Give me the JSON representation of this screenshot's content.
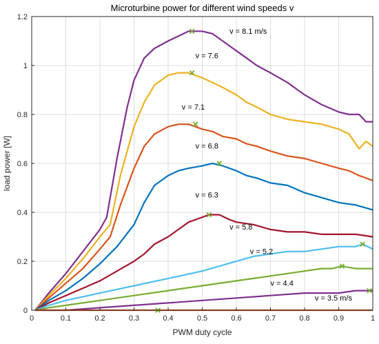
{
  "chart_data": {
    "type": "line",
    "title": "Microturbine power for different wind speeds v",
    "xlabel": "PWM duty cycle",
    "ylabel": "load power [W]",
    "xlim": [
      0,
      1
    ],
    "ylim": [
      0,
      1.2
    ],
    "xticks": [
      "0",
      "0.1",
      "0.2",
      "0.3",
      "0.4",
      "0.5",
      "0.6",
      "0.7",
      "0.8",
      "0.9",
      "1"
    ],
    "yticks": [
      "0",
      "0.2",
      "0.4",
      "0.6",
      "0.8",
      "1",
      "1.2"
    ],
    "grid": true,
    "series": [
      {
        "name": "v = 8.1 m/s",
        "color": "#7e2f8e",
        "x": [
          0.01,
          0.05,
          0.1,
          0.15,
          0.2,
          0.22,
          0.25,
          0.28,
          0.3,
          0.33,
          0.36,
          0.4,
          0.43,
          0.46,
          0.5,
          0.53,
          0.56,
          0.6,
          0.63,
          0.66,
          0.7,
          0.75,
          0.8,
          0.85,
          0.9,
          0.93,
          0.96,
          0.98,
          1.0
        ],
        "y": [
          0.0,
          0.07,
          0.15,
          0.24,
          0.33,
          0.38,
          0.62,
          0.83,
          0.94,
          1.03,
          1.07,
          1.1,
          1.12,
          1.14,
          1.14,
          1.13,
          1.1,
          1.06,
          1.03,
          1.0,
          0.97,
          0.93,
          0.88,
          0.84,
          0.81,
          0.8,
          0.8,
          0.77,
          0.77
        ],
        "label_text": "v = 8.1 m/s",
        "label_pos": [
          0.58,
          1.13
        ],
        "opt": [
          0.47,
          1.14
        ]
      },
      {
        "name": "v = 7.6",
        "color": "#edb120",
        "x": [
          0.01,
          0.05,
          0.1,
          0.15,
          0.2,
          0.23,
          0.26,
          0.3,
          0.33,
          0.36,
          0.4,
          0.43,
          0.46,
          0.5,
          0.53,
          0.56,
          0.6,
          0.63,
          0.66,
          0.7,
          0.75,
          0.8,
          0.85,
          0.9,
          0.93,
          0.96,
          0.98,
          1.0
        ],
        "y": [
          0.0,
          0.06,
          0.13,
          0.21,
          0.3,
          0.35,
          0.55,
          0.75,
          0.85,
          0.92,
          0.96,
          0.97,
          0.97,
          0.95,
          0.93,
          0.91,
          0.88,
          0.85,
          0.83,
          0.8,
          0.78,
          0.77,
          0.76,
          0.74,
          0.72,
          0.66,
          0.69,
          0.67
        ],
        "label_text": "v = 7.6",
        "label_pos": [
          0.48,
          1.03
        ],
        "opt": [
          0.47,
          0.97
        ]
      },
      {
        "name": "v = 7.1",
        "color": "#d95319",
        "x": [
          0.01,
          0.05,
          0.1,
          0.15,
          0.2,
          0.23,
          0.26,
          0.3,
          0.33,
          0.36,
          0.4,
          0.43,
          0.46,
          0.5,
          0.53,
          0.56,
          0.6,
          0.63,
          0.66,
          0.7,
          0.75,
          0.8,
          0.85,
          0.9,
          0.93,
          0.96,
          1.0
        ],
        "y": [
          0.0,
          0.05,
          0.11,
          0.17,
          0.25,
          0.3,
          0.43,
          0.58,
          0.67,
          0.72,
          0.75,
          0.76,
          0.76,
          0.74,
          0.73,
          0.71,
          0.7,
          0.68,
          0.67,
          0.65,
          0.63,
          0.62,
          0.6,
          0.58,
          0.57,
          0.55,
          0.53
        ],
        "label_text": "v = 7.1",
        "label_pos": [
          0.44,
          0.82
        ],
        "opt": [
          0.48,
          0.76
        ]
      },
      {
        "name": "v = 6.8",
        "color": "#0072bd",
        "x": [
          0.01,
          0.05,
          0.1,
          0.15,
          0.2,
          0.25,
          0.3,
          0.33,
          0.36,
          0.4,
          0.43,
          0.46,
          0.5,
          0.53,
          0.56,
          0.6,
          0.63,
          0.66,
          0.7,
          0.75,
          0.8,
          0.85,
          0.9,
          0.95,
          1.0
        ],
        "y": [
          0.0,
          0.04,
          0.08,
          0.13,
          0.19,
          0.26,
          0.35,
          0.44,
          0.51,
          0.55,
          0.57,
          0.58,
          0.59,
          0.6,
          0.59,
          0.57,
          0.55,
          0.54,
          0.52,
          0.51,
          0.48,
          0.46,
          0.44,
          0.43,
          0.41
        ],
        "label_text": "v = 6.8",
        "label_pos": [
          0.48,
          0.66
        ],
        "opt": [
          0.55,
          0.6
        ]
      },
      {
        "name": "v = 6.3",
        "color": "#a2142f",
        "x": [
          0.01,
          0.05,
          0.1,
          0.15,
          0.2,
          0.25,
          0.3,
          0.33,
          0.36,
          0.4,
          0.43,
          0.46,
          0.5,
          0.52,
          0.55,
          0.58,
          0.6,
          0.65,
          0.7,
          0.75,
          0.8,
          0.85,
          0.9,
          0.95,
          1.0
        ],
        "y": [
          0.0,
          0.03,
          0.06,
          0.09,
          0.12,
          0.16,
          0.2,
          0.23,
          0.27,
          0.3,
          0.33,
          0.36,
          0.38,
          0.39,
          0.39,
          0.37,
          0.36,
          0.35,
          0.33,
          0.32,
          0.32,
          0.31,
          0.31,
          0.31,
          0.3
        ],
        "label_text": "v = 6.3",
        "label_pos": [
          0.48,
          0.46
        ],
        "opt": [
          0.52,
          0.39
        ]
      },
      {
        "name": "v = 5.8",
        "color": "#4dbeee",
        "x": [
          0.01,
          0.05,
          0.1,
          0.2,
          0.3,
          0.4,
          0.5,
          0.55,
          0.6,
          0.65,
          0.7,
          0.75,
          0.8,
          0.85,
          0.9,
          0.95,
          0.97,
          1.0
        ],
        "y": [
          0.0,
          0.02,
          0.04,
          0.07,
          0.1,
          0.13,
          0.16,
          0.18,
          0.2,
          0.22,
          0.23,
          0.24,
          0.24,
          0.25,
          0.26,
          0.26,
          0.27,
          0.25
        ],
        "label_text": "v = 5.8",
        "label_pos": [
          0.58,
          0.33
        ],
        "opt": [
          0.97,
          0.27
        ]
      },
      {
        "name": "v = 5.2",
        "color": "#77ac30",
        "x": [
          0.01,
          0.05,
          0.1,
          0.2,
          0.3,
          0.4,
          0.5,
          0.6,
          0.65,
          0.7,
          0.75,
          0.8,
          0.85,
          0.88,
          0.91,
          0.95,
          1.0
        ],
        "y": [
          0.0,
          0.01,
          0.02,
          0.04,
          0.06,
          0.08,
          0.1,
          0.12,
          0.13,
          0.14,
          0.15,
          0.16,
          0.17,
          0.17,
          0.18,
          0.17,
          0.17
        ],
        "label_text": "v = 5.2",
        "label_pos": [
          0.64,
          0.23
        ],
        "opt": [
          0.91,
          0.18
        ]
      },
      {
        "name": "v = 4.4",
        "color": "#7e2f8e",
        "x": [
          0.01,
          0.1,
          0.2,
          0.3,
          0.4,
          0.5,
          0.6,
          0.7,
          0.8,
          0.9,
          0.95,
          1.0
        ],
        "y": [
          0.0,
          0.0,
          0.01,
          0.02,
          0.03,
          0.04,
          0.05,
          0.06,
          0.07,
          0.07,
          0.08,
          0.08
        ],
        "label_text": "v = 4.4",
        "label_pos": [
          0.7,
          0.1
        ],
        "opt": [
          0.99,
          0.08
        ]
      },
      {
        "name": "v = 3.5 m/s",
        "color": "#d95319",
        "x": [
          0.01,
          0.2,
          0.4,
          0.6,
          0.8,
          1.0
        ],
        "y": [
          0.0,
          0.0,
          0.0,
          0.0,
          0.0,
          0.0
        ],
        "label_text": "v = 3.5 m/s",
        "label_pos": [
          0.83,
          0.04
        ],
        "opt": [
          0.37,
          0.0
        ]
      }
    ]
  }
}
